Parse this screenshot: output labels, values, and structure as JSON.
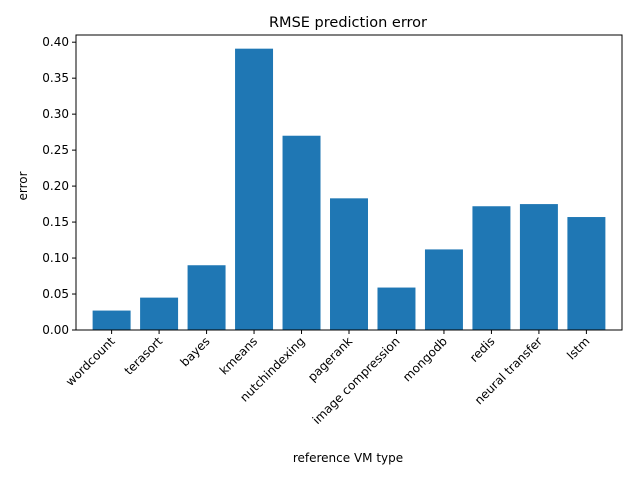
{
  "chart_data": {
    "type": "bar",
    "title": "RMSE prediction error",
    "xlabel": "reference VM type",
    "ylabel": "error",
    "categories": [
      "wordcount",
      "terasort",
      "bayes",
      "kmeans",
      "nutchindexing",
      "pagerank",
      "image compression",
      "mongodb",
      "redis",
      "neural transfer",
      "lstm"
    ],
    "values": [
      0.027,
      0.045,
      0.09,
      0.391,
      0.27,
      0.183,
      0.059,
      0.112,
      0.172,
      0.175,
      0.157
    ],
    "ylim": [
      0,
      0.41
    ],
    "yticks": [
      "0.00",
      "0.05",
      "0.10",
      "0.15",
      "0.20",
      "0.25",
      "0.30",
      "0.35",
      "0.40"
    ],
    "bar_color": "#1f77b4",
    "grid": false,
    "legend": false
  }
}
